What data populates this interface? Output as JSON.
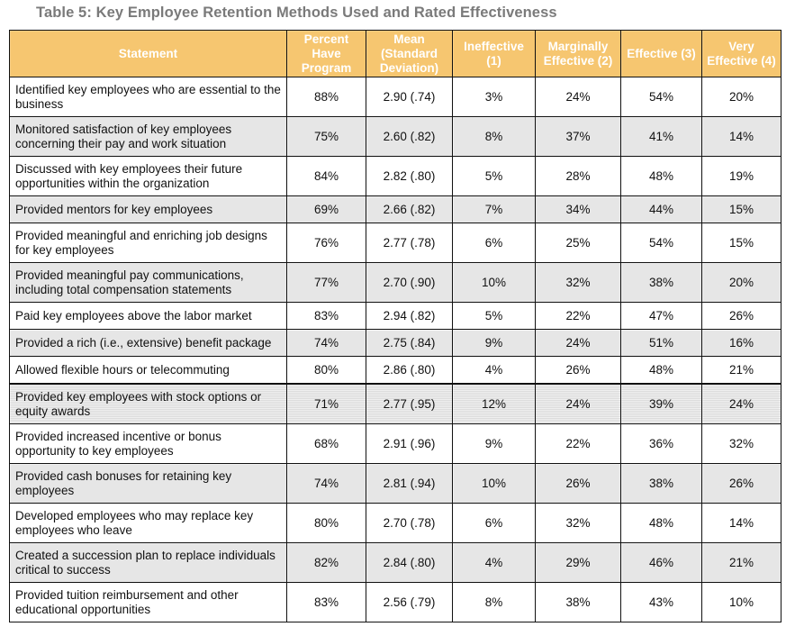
{
  "caption": "Table 5: Key Employee Retention Methods Used and Rated Effectiveness",
  "headers": [
    "Statement",
    "Percent Have Program",
    "Mean (Standard Deviation)",
    "Ineffective (1)",
    "Marginally Effective (2)",
    "Effective (3)",
    "Very Effective (4)"
  ],
  "rows": [
    [
      "Identified key employees who are essential to the business",
      "88%",
      "2.90 (.74)",
      "3%",
      "24%",
      "54%",
      "20%"
    ],
    [
      "Monitored satisfaction of key employees concerning their pay and work situation",
      "75%",
      "2.60 (.82)",
      "8%",
      "37%",
      "41%",
      "14%"
    ],
    [
      "Discussed with key employees their future opportunities within the organization",
      "84%",
      "2.82 (.80)",
      "5%",
      "28%",
      "48%",
      "19%"
    ],
    [
      "Provided mentors for key employees",
      "69%",
      "2.66 (.82)",
      "7%",
      "34%",
      "44%",
      "15%"
    ],
    [
      "Provided meaningful and enriching job designs for key employees",
      "76%",
      "2.77 (.78)",
      "6%",
      "25%",
      "54%",
      "15%"
    ],
    [
      "Provided meaningful pay communications, including total compensation statements",
      "77%",
      "2.70 (.90)",
      "10%",
      "32%",
      "38%",
      "20%"
    ],
    [
      "Paid key employees above the labor market",
      "83%",
      "2.94 (.82)",
      "5%",
      "22%",
      "47%",
      "26%"
    ],
    [
      "Provided a rich (i.e., extensive) benefit package",
      "74%",
      "2.75 (.84)",
      "9%",
      "24%",
      "51%",
      "16%"
    ],
    [
      "Allowed flexible hours or telecommuting",
      "80%",
      "2.86 (.80)",
      "4%",
      "26%",
      "48%",
      "21%"
    ],
    [
      "Provided key employees with stock options or equity awards",
      "71%",
      "2.77 (.95)",
      "12%",
      "24%",
      "39%",
      "24%"
    ],
    [
      "Provided increased incentive or bonus opportunity to key employees",
      "68%",
      "2.91 (.96)",
      "9%",
      "22%",
      "36%",
      "32%"
    ],
    [
      "Provided cash bonuses for retaining key employees",
      "74%",
      "2.81 (.94)",
      "10%",
      "26%",
      "38%",
      "26%"
    ],
    [
      "Developed employees who may replace key employees who leave",
      "80%",
      "2.70 (.78)",
      "6%",
      "32%",
      "48%",
      "14%"
    ],
    [
      "Created a succession plan to replace individuals critical to success",
      "82%",
      "2.84 (.80)",
      "4%",
      "29%",
      "46%",
      "21%"
    ],
    [
      "Provided tuition reimbursement and other educational opportunities",
      "83%",
      "2.56 (.79)",
      "8%",
      "38%",
      "43%",
      "10%"
    ]
  ]
}
